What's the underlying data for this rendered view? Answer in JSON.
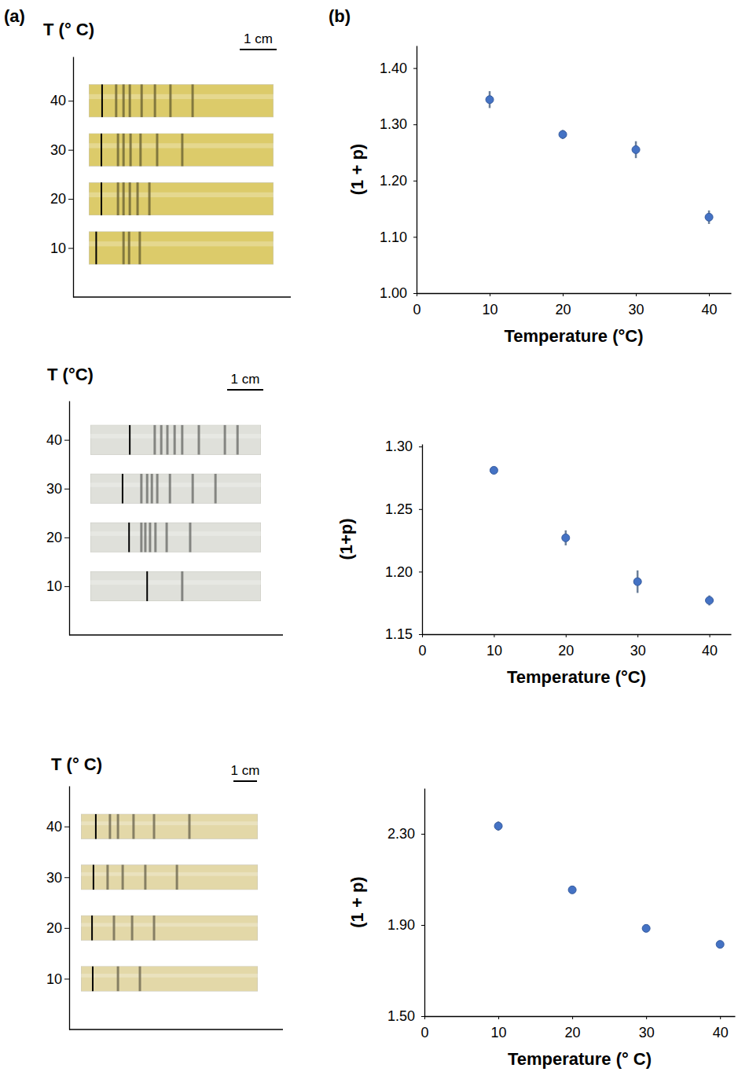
{
  "chart_data": [
    {
      "type": "image",
      "label": "(a)",
      "ylabel": "T (° C)",
      "ylim": [
        0,
        49
      ],
      "yticks": [
        10,
        20,
        30,
        40
      ],
      "tick_labels": "y",
      "scale_bar": {
        "label": "1 cm",
        "value": 1
      },
      "color": "#dccb6a",
      "tubes": [
        {
          "y": 40,
          "start": 0.36,
          "bands": [
            0.74,
            0.94,
            1.11,
            1.43,
            1.79,
            2.21,
            2.81
          ]
        },
        {
          "y": 30,
          "start": 0.34,
          "bands": [
            0.79,
            0.94,
            1.13,
            1.4,
            1.85,
            2.53
          ]
        },
        {
          "y": 20,
          "start": 0.34,
          "bands": [
            0.79,
            0.94,
            1.11,
            1.32,
            1.64
          ]
        },
        {
          "y": 10,
          "start": 0.2,
          "bands": [
            0.94,
            1.09,
            1.38
          ]
        }
      ]
    },
    {
      "type": "scatter",
      "label": "(b)",
      "xlabel": "Temperature (°C)",
      "ylabel": "(1 + p)",
      "xlim": [
        0,
        43
      ],
      "xticks": [
        0,
        10,
        20,
        30,
        40
      ],
      "ylim": [
        1,
        1.44
      ],
      "yticks": [
        {
          "value": 1,
          "label": "1.00"
        },
        {
          "value": 1.1,
          "label": "1.10"
        },
        {
          "value": 1.2,
          "label": "1.20"
        },
        {
          "value": 1.3,
          "label": "1.30"
        },
        {
          "value": 1.4,
          "label": "1.40"
        }
      ],
      "x": [
        10,
        20,
        30,
        40
      ],
      "values": [
        1.344,
        1.282,
        1.255,
        1.135
      ],
      "errors": [
        0.015,
        0.008,
        0.015,
        0.012
      ],
      "color": "#4472c4",
      "marker": "circle"
    },
    {
      "type": "image",
      "ylabel": "T (°C)",
      "ylim": [
        0,
        48
      ],
      "yticks": [
        10,
        20,
        30,
        40
      ],
      "tick_labels": "y",
      "scale_bar": {
        "label": "1 cm",
        "value": 1
      },
      "color": "#dfe0da",
      "tubes": [
        {
          "y": 40,
          "start": 1.09,
          "bands": [
            1.78,
            1.96,
            2.13,
            2.33,
            2.54,
            3.0,
            3.72,
            4.07
          ]
        },
        {
          "y": 30,
          "start": 0.89,
          "bands": [
            1.41,
            1.57,
            1.7,
            1.85,
            2.2,
            2.83,
            3.46
          ]
        },
        {
          "y": 20,
          "start": 1.07,
          "bands": [
            1.41,
            1.52,
            1.65,
            1.8,
            2.11,
            2.76
          ]
        },
        {
          "y": 10,
          "start": 1.57,
          "bands": [
            2.54
          ]
        }
      ]
    },
    {
      "type": "scatter",
      "xlabel": "Temperature (°C)",
      "ylabel": "(1+p)",
      "xlim": [
        0,
        43
      ],
      "xticks": [
        0,
        10,
        20,
        30,
        40
      ],
      "ylim": [
        1.15,
        1.302
      ],
      "yticks": [
        1.15,
        {
          "value": 1.2,
          "label": "1.20"
        },
        1.25,
        {
          "value": 1.3,
          "label": "1.30"
        }
      ],
      "x": [
        10,
        20,
        30,
        40
      ],
      "values": [
        1.281,
        1.227,
        1.192,
        1.177
      ],
      "errors": [
        0.002,
        0.006,
        0.009,
        0.004
      ],
      "color": "#4472c4",
      "marker": "circle"
    },
    {
      "type": "image",
      "ylabel": "T (° C)",
      "ylim": [
        0,
        48
      ],
      "yticks": [
        10,
        20,
        30,
        40
      ],
      "tick_labels": "y",
      "scale_bar": {
        "label": "1 cm",
        "value": 1
      },
      "color": "#e3d8a8",
      "tubes": [
        {
          "y": 40,
          "start": 0.63,
          "bands": [
            1.23,
            1.57,
            2.23,
            3.1,
            4.6
          ]
        },
        {
          "y": 30,
          "start": 0.53,
          "bands": [
            1.13,
            1.77,
            2.73,
            4.07
          ]
        },
        {
          "y": 20,
          "start": 0.47,
          "bands": [
            1.4,
            2.17,
            3.1
          ]
        },
        {
          "y": 10,
          "start": 0.5,
          "bands": [
            1.57,
            2.5
          ]
        }
      ]
    },
    {
      "type": "scatter",
      "xlabel": "Temperature (° C)",
      "ylabel": "(1 + p)",
      "xlim": [
        0,
        42
      ],
      "xticks": [
        0,
        10,
        20,
        30,
        40
      ],
      "ylim": [
        1.5,
        2.5
      ],
      "yticks": [
        {
          "value": 1.5,
          "label": "1.50"
        },
        {
          "value": 1.9,
          "label": "1.90"
        },
        {
          "value": 2.3,
          "label": "2.30"
        }
      ],
      "x": [
        10,
        20,
        30,
        40
      ],
      "values": [
        2.334,
        2.054,
        1.885,
        1.815
      ],
      "errors": [
        0.02,
        0.015,
        0.012,
        0.01
      ],
      "color": "#4472c4",
      "marker": "circle"
    }
  ]
}
